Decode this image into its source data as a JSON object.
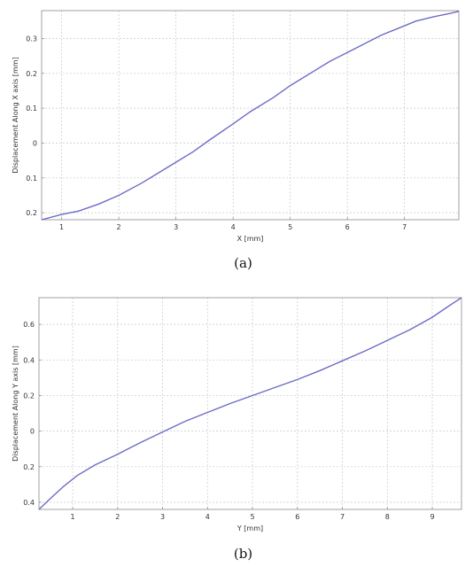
{
  "chart_data": [
    {
      "type": "line",
      "xlabel": "X [mm]",
      "ylabel": "Displacement Along X axis [mm]",
      "caption": "(a)",
      "xlim": [
        0.65,
        7.95
      ],
      "ylim": [
        -0.22,
        0.38
      ],
      "xticks": [
        1,
        2,
        3,
        4,
        5,
        6,
        7
      ],
      "xtick_labels": [
        "1",
        "2",
        "3",
        "4",
        "5",
        "6",
        "7"
      ],
      "yticks": [
        -0.2,
        -0.1,
        0,
        0.1,
        0.2,
        0.3
      ],
      "ytick_labels": [
        "0.2",
        "0.1",
        "0",
        "0.1",
        "0.2",
        "0.3"
      ],
      "grid": true,
      "series": [
        {
          "color": "#6c6cc6",
          "x": [
            0.65,
            1.0,
            1.3,
            1.65,
            2.0,
            2.4,
            2.7,
            3.0,
            3.3,
            3.6,
            4.0,
            4.3,
            4.7,
            5.0,
            5.4,
            5.7,
            6.0,
            6.3,
            6.6,
            6.9,
            7.2,
            7.5,
            7.8,
            7.95
          ],
          "y": [
            -0.22,
            -0.205,
            -0.195,
            -0.175,
            -0.15,
            -0.115,
            -0.085,
            -0.055,
            -0.025,
            0.01,
            0.055,
            0.09,
            0.13,
            0.165,
            0.205,
            0.235,
            0.26,
            0.285,
            0.31,
            0.33,
            0.35,
            0.362,
            0.372,
            0.378
          ]
        }
      ]
    },
    {
      "type": "line",
      "xlabel": "Y [mm]",
      "ylabel": "Displacement Along Y axis [mm]",
      "caption": "(b)",
      "xlim": [
        0.25,
        9.65
      ],
      "ylim": [
        -0.44,
        0.75
      ],
      "xticks": [
        1,
        2,
        3,
        4,
        5,
        6,
        7,
        8,
        9
      ],
      "xtick_labels": [
        "1",
        "2",
        "3",
        "4",
        "5",
        "6",
        "7",
        "8",
        "9"
      ],
      "yticks": [
        -0.4,
        -0.2,
        0,
        0.2,
        0.4,
        0.6
      ],
      "ytick_labels": [
        "0.4",
        "0.2",
        "0",
        "0.2",
        "0.4",
        "0.6"
      ],
      "grid": true,
      "series": [
        {
          "color": "#6c6cc6",
          "x": [
            0.25,
            0.5,
            0.8,
            1.1,
            1.5,
            2.0,
            2.5,
            3.0,
            3.5,
            4.0,
            4.5,
            5.0,
            5.5,
            6.0,
            6.5,
            7.0,
            7.5,
            8.0,
            8.5,
            9.0,
            9.35,
            9.65
          ],
          "y": [
            -0.44,
            -0.38,
            -0.31,
            -0.25,
            -0.19,
            -0.13,
            -0.065,
            -0.005,
            0.055,
            0.105,
            0.155,
            0.2,
            0.245,
            0.29,
            0.34,
            0.395,
            0.45,
            0.51,
            0.57,
            0.64,
            0.7,
            0.75
          ]
        }
      ]
    }
  ]
}
